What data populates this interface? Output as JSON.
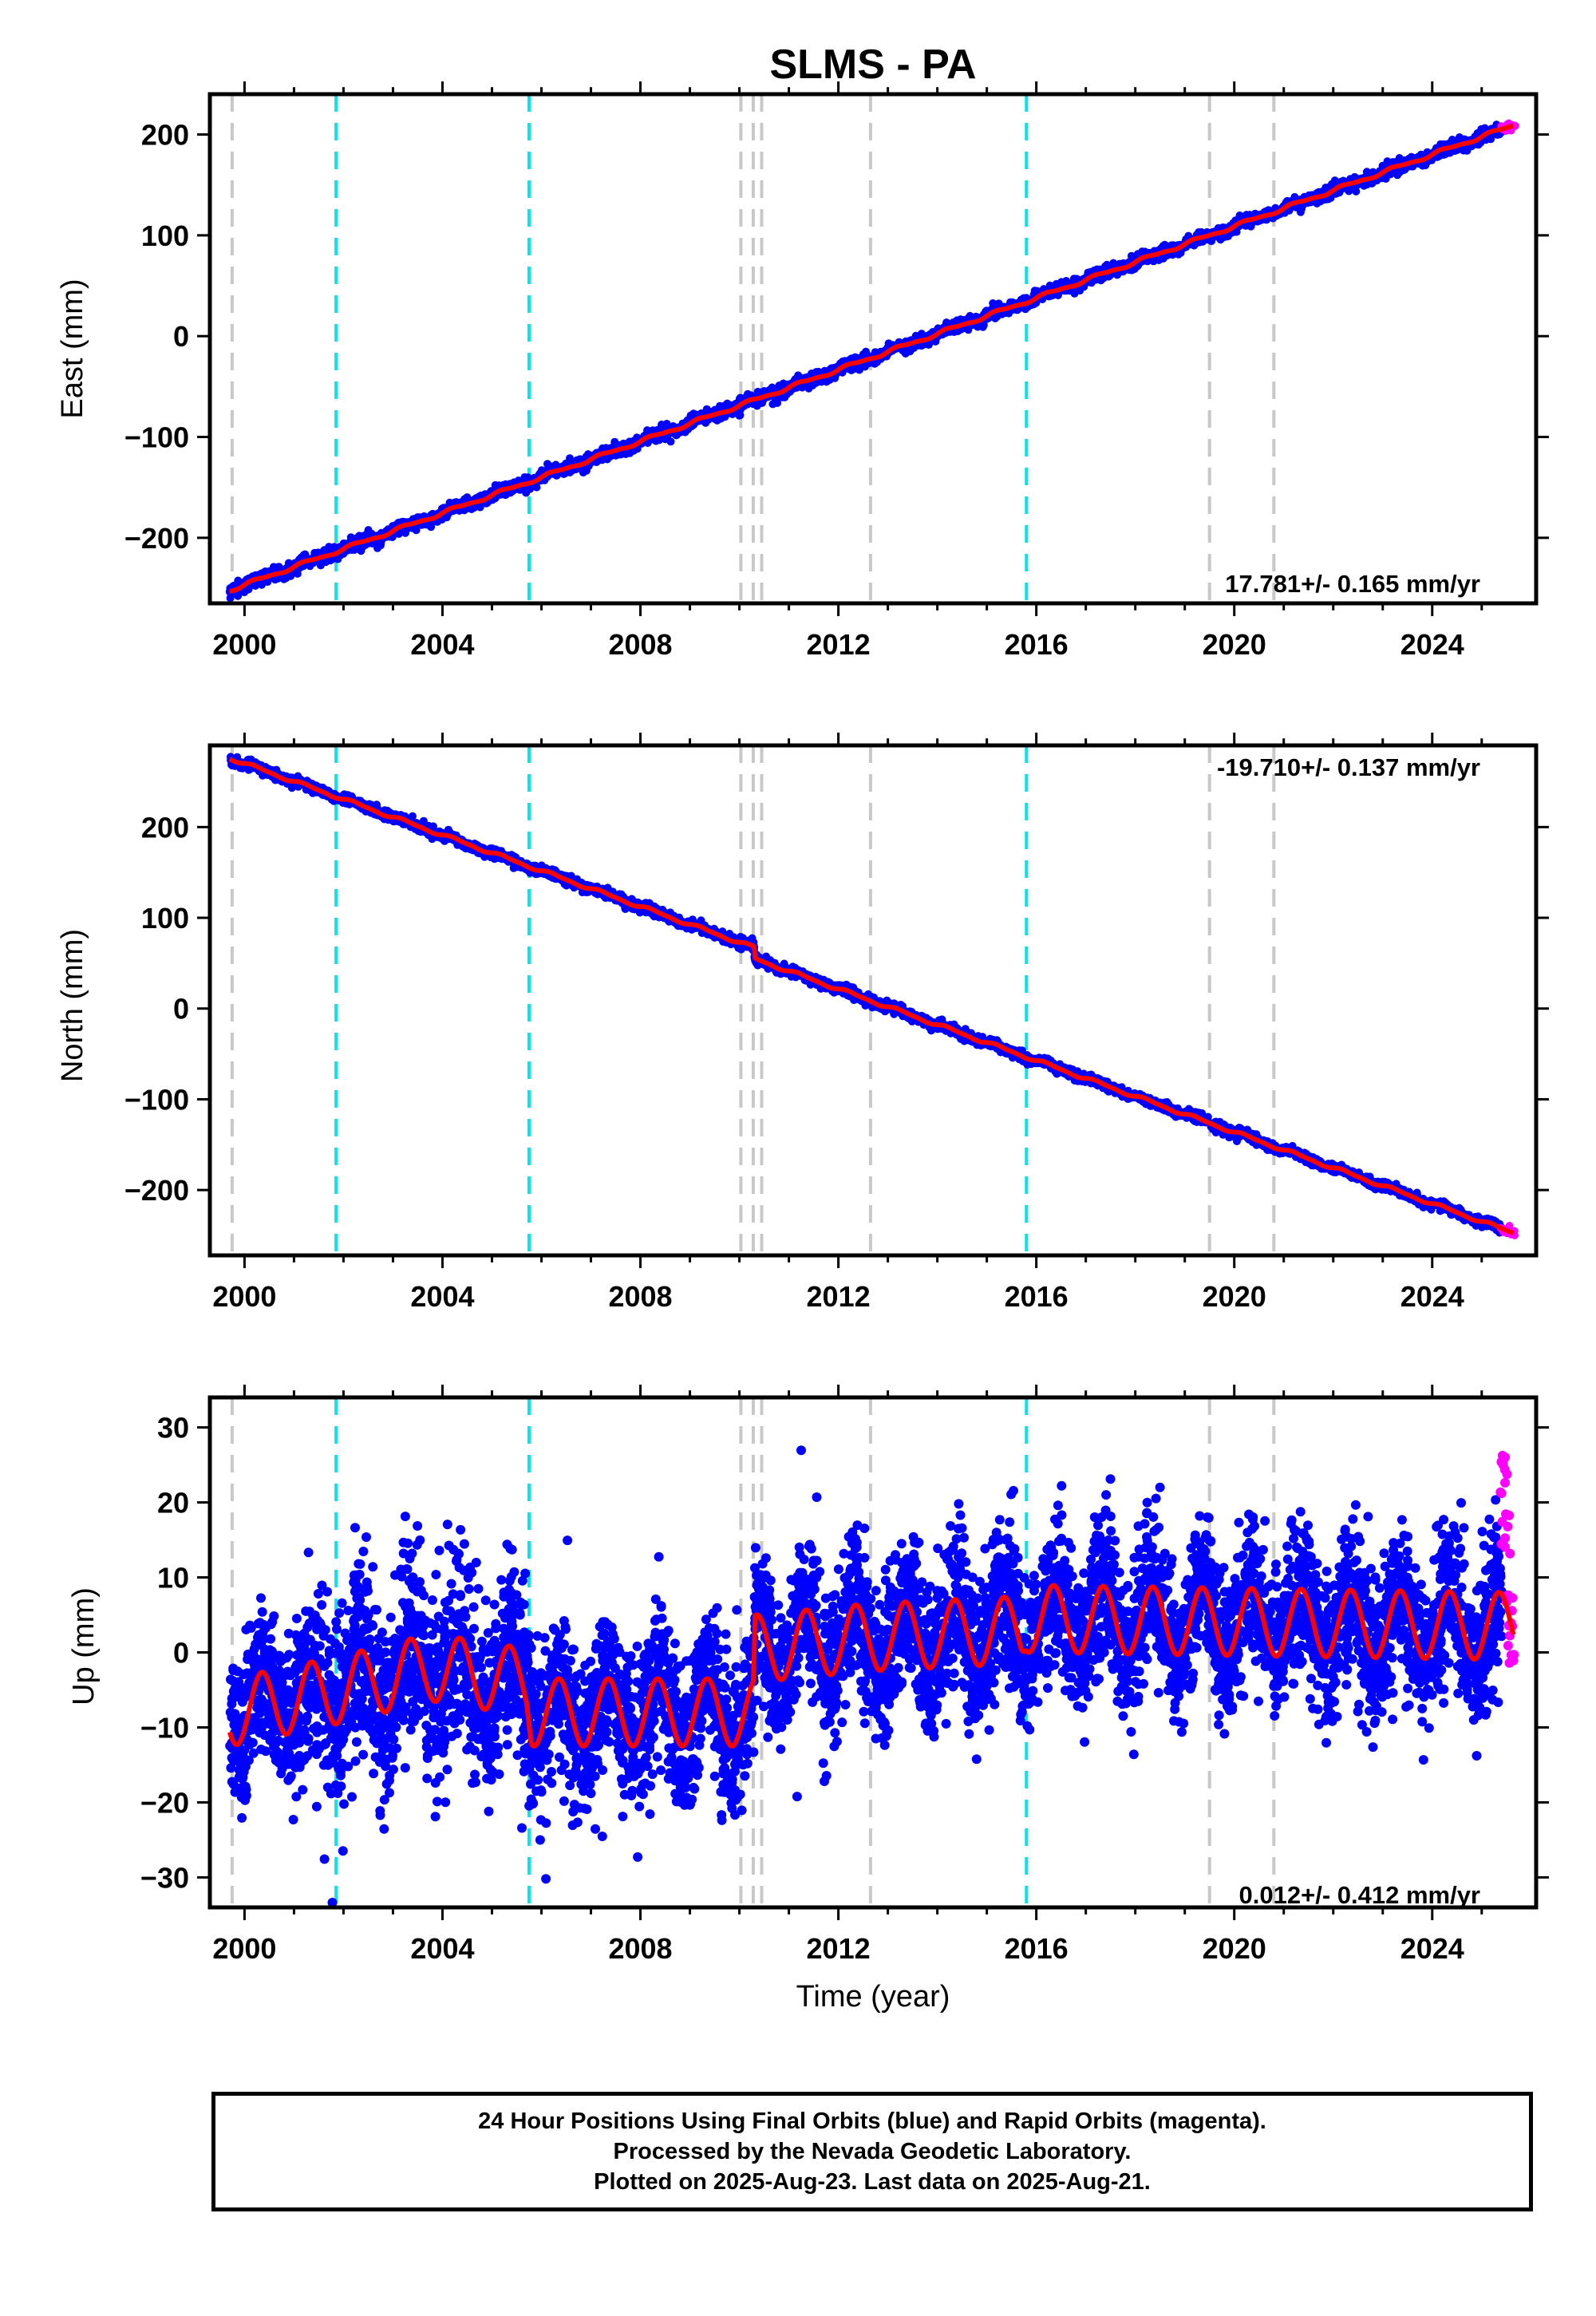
{
  "title": "SLMS - PA",
  "x_axis_title": "Time (year)",
  "colors": {
    "final": "#0000ff",
    "rapid": "#ff00ff",
    "model": "#ff0000",
    "equipment_change": "#c8c8c8",
    "earthquake": "#00e5ee",
    "frame": "#000000"
  },
  "chart_data": [
    {
      "type": "scatter",
      "component": "east",
      "ylabel": "East (mm)",
      "xlim": [
        1999.3,
        2026.1
      ],
      "ylim": [
        -265,
        240
      ],
      "xticks": [
        "2000",
        "2004",
        "2008",
        "2012",
        "2016",
        "2020",
        "2024"
      ],
      "yticks": [
        "−200",
        "−100",
        "0",
        "100",
        "200"
      ],
      "ytick_values": [
        -200,
        -100,
        0,
        100,
        200
      ],
      "rate_text": "17.781+/- 0.165 mm/yr",
      "rate_position": "bottom-right",
      "model": {
        "start_year": 1999.7,
        "end_year": 2025.64,
        "start_value": -252,
        "slope_mm_per_yr": 17.781,
        "annual_amp": 1.5,
        "semiannual_amp": 0.6
      },
      "scatter_noise_mm": 3,
      "offsets": [],
      "series": [
        {
          "name": "Final Orbits (blue)",
          "x_range": [
            1999.7,
            2025.4
          ],
          "points_approx": 9000
        },
        {
          "name": "Rapid Orbits (magenta)",
          "x_range": [
            2025.4,
            2025.64
          ],
          "points_approx": 40
        }
      ],
      "grid": false
    },
    {
      "type": "scatter",
      "component": "north",
      "ylabel": "North (mm)",
      "xlim": [
        1999.3,
        2026.1
      ],
      "ylim": [
        -272,
        290
      ],
      "xticks": [
        "2000",
        "2004",
        "2008",
        "2012",
        "2016",
        "2020",
        "2024"
      ],
      "yticks": [
        "−200",
        "−100",
        "0",
        "100",
        "200"
      ],
      "ytick_values": [
        -200,
        -100,
        0,
        100,
        200
      ],
      "rate_text": "-19.710+/- 0.137 mm/yr",
      "rate_position": "top-right",
      "model": {
        "start_year": 1999.7,
        "end_year": 2025.64,
        "start_value": 276,
        "slope_mm_per_yr": -19.71,
        "annual_amp": 1.5,
        "semiannual_amp": 0.6
      },
      "scatter_noise_mm": 2.5,
      "offsets": [
        {
          "year": 2010.3,
          "step_mm": -12
        }
      ],
      "series": [
        {
          "name": "Final Orbits (blue)",
          "x_range": [
            1999.7,
            2025.4
          ],
          "points_approx": 9000
        },
        {
          "name": "Rapid Orbits (magenta)",
          "x_range": [
            2025.4,
            2025.64
          ],
          "points_approx": 40
        }
      ],
      "grid": false
    },
    {
      "type": "scatter",
      "component": "up",
      "ylabel": "Up (mm)",
      "xlim": [
        1999.3,
        2026.1
      ],
      "ylim": [
        -34,
        34
      ],
      "xticks": [
        "2000",
        "2004",
        "2008",
        "2012",
        "2016",
        "2020",
        "2024"
      ],
      "yticks": [
        "−30",
        "−20",
        "−10",
        "0",
        "10",
        "20",
        "30"
      ],
      "ytick_values": [
        -30,
        -20,
        -10,
        0,
        10,
        20,
        30
      ],
      "rate_text": "0.012+/- 0.412 mm/yr",
      "rate_position": "bottom-right",
      "model": {
        "annual_amp": 4.5,
        "baseline": [
          {
            "year": 1999.7,
            "value": -8
          },
          {
            "year": 2001.9,
            "value": -5
          },
          {
            "year": 2003.8,
            "value": -2
          },
          {
            "year": 2005.7,
            "value": -4
          },
          {
            "year": 2005.8,
            "value": -8
          },
          {
            "year": 2010.29,
            "value": -8
          },
          {
            "year": 2010.31,
            "value": 0.5
          },
          {
            "year": 2012.6,
            "value": 2
          },
          {
            "year": 2015.7,
            "value": 3
          },
          {
            "year": 2015.8,
            "value": 4.5
          },
          {
            "year": 2025.64,
            "value": 3.5
          }
        ]
      },
      "scatter_noise_mm": 5,
      "series": [
        {
          "name": "Final Orbits (blue)",
          "x_range": [
            1999.7,
            2025.4
          ],
          "points_approx": 9000
        },
        {
          "name": "Rapid Orbits (magenta)",
          "x_range": [
            2025.4,
            2025.64
          ],
          "points_approx": 40
        }
      ],
      "grid": false
    }
  ],
  "event_lines": {
    "equipment": [
      1999.75,
      2010.03,
      2010.28,
      2010.45,
      2012.65,
      2019.5,
      2020.8
    ],
    "earthquake": [
      2001.85,
      2005.75,
      2015.8
    ]
  },
  "footer": {
    "line1": "24 Hour Positions Using Final Orbits (blue) and Rapid Orbits (magenta).",
    "line2": "Processed by the Nevada Geodetic Laboratory.",
    "line3": "Plotted on 2025-Aug-23. Last data on 2025-Aug-21."
  }
}
